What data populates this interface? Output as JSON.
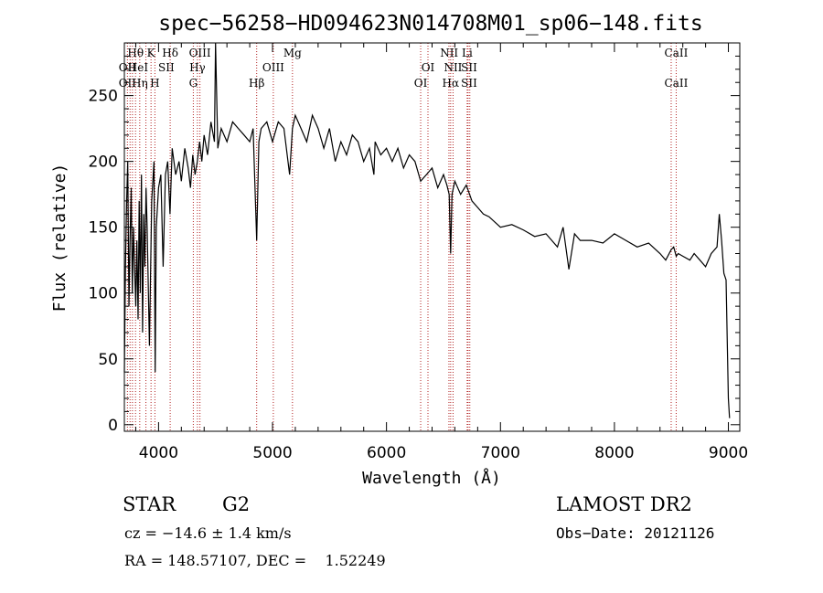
{
  "chart_data": {
    "type": "line",
    "title": "spec−56258−HD094623N014708M01_sp06−148.fits",
    "xlabel": "Wavelength (Å)",
    "ylabel": "Flux (relative)",
    "xlim": [
      3700,
      9100
    ],
    "ylim": [
      -5,
      290
    ],
    "xticks": [
      4000,
      5000,
      6000,
      7000,
      8000,
      9000
    ],
    "yticks": [
      0,
      50,
      100,
      150,
      200,
      250
    ],
    "grid": false,
    "line_color": "#000000",
    "marker_color": "#b22222",
    "series": [
      {
        "x": [
          3700,
          3710,
          3720,
          3730,
          3740,
          3750,
          3760,
          3770,
          3780,
          3790,
          3800,
          3810,
          3820,
          3830,
          3840,
          3850,
          3860,
          3870,
          3880,
          3890,
          3900,
          3920,
          3940,
          3960,
          3970,
          3980,
          4000,
          4020,
          4040,
          4060,
          4080,
          4100,
          4120,
          4150,
          4180,
          4200,
          4230,
          4260,
          4280,
          4300,
          4320,
          4340,
          4360,
          4380,
          4400,
          4430,
          4460,
          4490,
          4500,
          4520,
          4550,
          4600,
          4650,
          4700,
          4750,
          4800,
          4830,
          4861,
          4880,
          4900,
          4950,
          5000,
          5050,
          5100,
          5150,
          5175,
          5200,
          5250,
          5300,
          5350,
          5400,
          5450,
          5500,
          5550,
          5600,
          5650,
          5700,
          5750,
          5800,
          5850,
          5890,
          5900,
          5950,
          6000,
          6050,
          6100,
          6150,
          6200,
          6250,
          6300,
          6350,
          6400,
          6450,
          6500,
          6530,
          6550,
          6563,
          6575,
          6600,
          6650,
          6700,
          6750,
          6800,
          6850,
          6900,
          7000,
          7100,
          7200,
          7300,
          7400,
          7500,
          7550,
          7600,
          7650,
          7700,
          7800,
          7900,
          8000,
          8100,
          8200,
          8300,
          8400,
          8450,
          8498,
          8520,
          8542,
          8560,
          8600,
          8662,
          8700,
          8750,
          8800,
          8850,
          8900,
          8920,
          8940,
          8960,
          8980,
          9000,
          9010
        ],
        "y": [
          40,
          120,
          170,
          200,
          90,
          140,
          180,
          100,
          150,
          120,
          90,
          140,
          80,
          170,
          100,
          190,
          70,
          160,
          120,
          180,
          150,
          60,
          170,
          200,
          40,
          150,
          180,
          190,
          120,
          190,
          200,
          160,
          210,
          190,
          200,
          185,
          210,
          195,
          180,
          205,
          190,
          200,
          215,
          200,
          220,
          205,
          230,
          215,
          290,
          210,
          225,
          215,
          230,
          225,
          220,
          215,
          225,
          140,
          215,
          225,
          230,
          215,
          230,
          225,
          190,
          225,
          235,
          225,
          215,
          235,
          225,
          210,
          225,
          200,
          215,
          205,
          220,
          215,
          200,
          210,
          190,
          215,
          205,
          210,
          200,
          210,
          195,
          205,
          200,
          185,
          190,
          195,
          180,
          190,
          182,
          175,
          130,
          175,
          185,
          175,
          182,
          170,
          165,
          160,
          158,
          150,
          152,
          148,
          143,
          145,
          135,
          150,
          118,
          145,
          140,
          140,
          138,
          145,
          140,
          135,
          138,
          130,
          125,
          133,
          135,
          128,
          130,
          128,
          125,
          130,
          125,
          120,
          130,
          135,
          160,
          140,
          115,
          110,
          20,
          5
        ]
      }
    ],
    "annotations": [
      {
        "label": "Hθ",
        "x": 3798,
        "row": 1
      },
      {
        "label": "OII",
        "x": 3727,
        "row": 2
      },
      {
        "label": "HeI",
        "x": 3820,
        "row": 2
      },
      {
        "label": "OII",
        "x": 3727,
        "row": 3
      },
      {
        "label": "Hη",
        "x": 3835,
        "row": 3
      },
      {
        "label": "K",
        "x": 3934,
        "row": 1
      },
      {
        "label": "H",
        "x": 3968,
        "row": 3
      },
      {
        "label": "SII",
        "x": 4068,
        "row": 2
      },
      {
        "label": "Hδ",
        "x": 4102,
        "row": 1
      },
      {
        "label": "OIII",
        "x": 4363,
        "row": 1
      },
      {
        "label": "Hγ",
        "x": 4341,
        "row": 2
      },
      {
        "label": "G",
        "x": 4305,
        "row": 3
      },
      {
        "label": "Hβ",
        "x": 4861,
        "row": 3
      },
      {
        "label": "OIII",
        "x": 5007,
        "row": 2
      },
      {
        "label": "Mg",
        "x": 5175,
        "row": 1
      },
      {
        "label": "OI",
        "x": 6300,
        "row": 3
      },
      {
        "label": "OI",
        "x": 6364,
        "row": 2
      },
      {
        "label": "NII",
        "x": 6550,
        "row": 1
      },
      {
        "label": "NII",
        "x": 6584,
        "row": 2
      },
      {
        "label": "Hα",
        "x": 6563,
        "row": 3
      },
      {
        "label": "Li",
        "x": 6708,
        "row": 1
      },
      {
        "label": "SII",
        "x": 6725,
        "row": 2
      },
      {
        "label": "SII",
        "x": 6725,
        "row": 3
      },
      {
        "label": "CaII",
        "x": 8542,
        "row": 1
      },
      {
        "label": "CaII",
        "x": 8542,
        "row": 3
      }
    ],
    "marker_lines": [
      3727,
      3750,
      3771,
      3798,
      3835,
      3889,
      3934,
      3968,
      4102,
      4305,
      4341,
      4363,
      4861,
      5007,
      5175,
      6300,
      6364,
      6548,
      6563,
      6584,
      6708,
      6716,
      6731,
      8498,
      8542
    ]
  },
  "info": {
    "object_type": "STAR",
    "subclass": "G2",
    "survey": "LAMOST DR2",
    "redshift": "cz = −14.6 ± 1.4 km/s",
    "obs_date": "Obs−Date: 20121126",
    "coords": "RA = 148.57107, DEC =    1.52249"
  }
}
